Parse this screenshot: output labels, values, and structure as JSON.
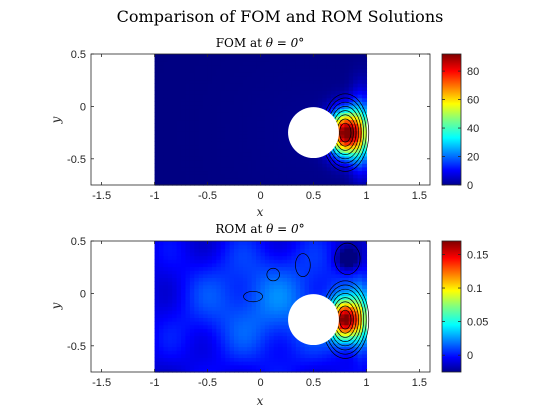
{
  "figure": {
    "title": "Comparison of FOM and ROM Solutions"
  },
  "colormap": "jet",
  "chart_data": [
    {
      "type": "heatmap",
      "title_prefix": "FOM at ",
      "title_theta": "θ = 0°",
      "xlabel": "x",
      "ylabel": "y",
      "xlim": [
        -1.6,
        1.6
      ],
      "ylim": [
        -0.75,
        0.5
      ],
      "x_ticks": [
        "-1.5",
        "-1",
        "-0.5",
        "0",
        "0.5",
        "1",
        "1.5"
      ],
      "x_tick_values": [
        -1.5,
        -1,
        -0.5,
        0,
        0.5,
        1,
        1.5
      ],
      "y_ticks": [
        "0.5",
        "0",
        "-0.5"
      ],
      "y_tick_values": [
        0.5,
        0,
        -0.5
      ],
      "domain": {
        "x": [
          -1,
          1
        ],
        "y": [
          -0.75,
          0.5
        ]
      },
      "cylinder": {
        "cx": 0.5,
        "cy": -0.25,
        "r": 0.24
      },
      "field_range": [
        0,
        92
      ],
      "colorbar_ticks": [
        "80",
        "60",
        "40",
        "20",
        "0"
      ],
      "colorbar_tick_values": [
        80,
        60,
        40,
        20,
        0
      ]
    },
    {
      "type": "heatmap",
      "title_prefix": "ROM at ",
      "title_theta": "θ = 0°",
      "xlabel": "x",
      "ylabel": "y",
      "xlim": [
        -1.6,
        1.6
      ],
      "ylim": [
        -0.75,
        0.5
      ],
      "x_ticks": [
        "-1.5",
        "-1",
        "-0.5",
        "0",
        "0.5",
        "1",
        "1.5"
      ],
      "x_tick_values": [
        -1.5,
        -1,
        -0.5,
        0,
        0.5,
        1,
        1.5
      ],
      "y_ticks": [
        "0.5",
        "0",
        "-0.5"
      ],
      "y_tick_values": [
        0.5,
        0,
        -0.5
      ],
      "domain": {
        "x": [
          -1,
          1
        ],
        "y": [
          -0.75,
          0.5
        ]
      },
      "cylinder": {
        "cx": 0.5,
        "cy": -0.25,
        "r": 0.24
      },
      "field_range": [
        -0.025,
        0.17
      ],
      "colorbar_ticks": [
        "0.15",
        "0.1",
        "0.05",
        "0"
      ],
      "colorbar_tick_values": [
        0.15,
        0.1,
        0.05,
        0
      ]
    }
  ]
}
